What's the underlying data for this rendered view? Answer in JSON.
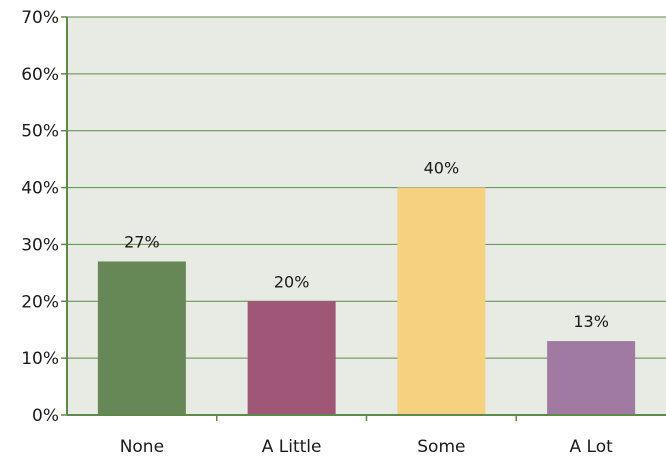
{
  "chart_data": {
    "type": "bar",
    "categories": [
      "None",
      "A Little",
      "Some",
      "A Lot"
    ],
    "values": [
      27,
      20,
      40,
      13
    ],
    "data_labels": [
      "27%",
      "20%",
      "40%",
      "13%"
    ],
    "bar_colors": [
      "#668756",
      "#a05676",
      "#f6d280",
      "#a07aa0"
    ],
    "ylim": [
      0,
      70
    ],
    "y_ticks": [
      0,
      10,
      20,
      30,
      40,
      50,
      60,
      70
    ],
    "y_tick_labels": [
      "0%",
      "10%",
      "20%",
      "30%",
      "40%",
      "50%",
      "60%",
      "70%"
    ],
    "grid": true,
    "plot_background": "#e8eae4",
    "axis_color": "#5d8a4a",
    "grid_color": "#5d8a4a",
    "title": "",
    "xlabel": "",
    "ylabel": ""
  }
}
